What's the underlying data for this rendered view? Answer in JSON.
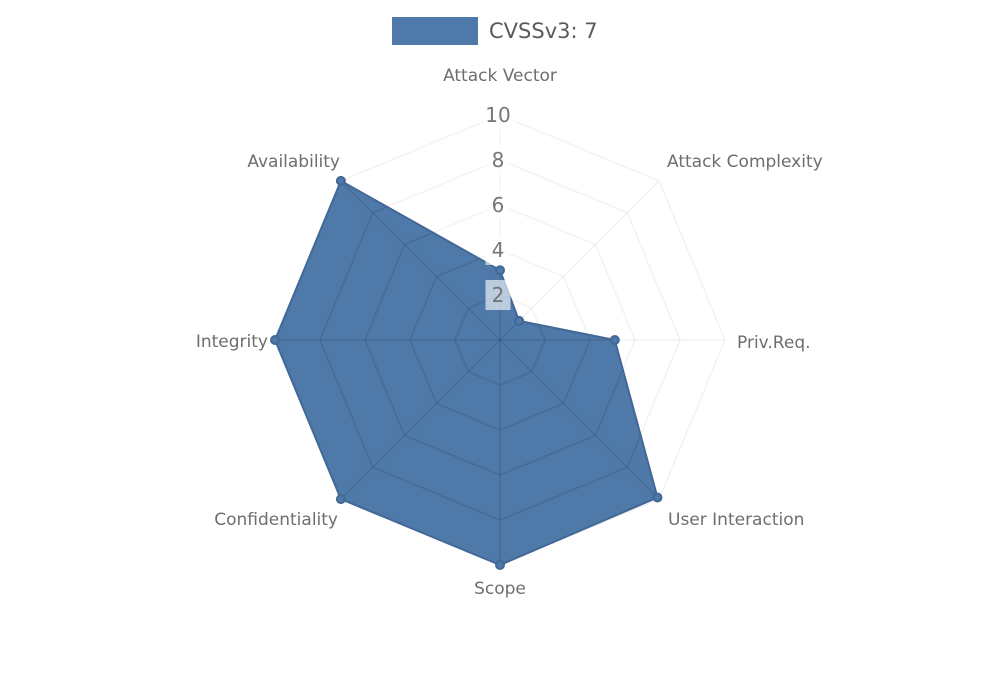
{
  "legend": {
    "label": "CVSSv3: 7"
  },
  "chart_data": {
    "type": "radar",
    "title": "",
    "categories": [
      "Attack Vector",
      "Attack Complexity",
      "Priv.Req.",
      "User Interaction",
      "Scope",
      "Confidentiality",
      "Integrity",
      "Availability"
    ],
    "series": [
      {
        "name": "CVSSv3: 7",
        "color": "#4e79a8",
        "values": [
          3.1,
          1.2,
          5.1,
          9.9,
          10,
          10,
          10,
          10
        ]
      }
    ],
    "radial_ticks": [
      2,
      4,
      6,
      8,
      10
    ],
    "rlim": [
      0,
      10
    ],
    "grid": "polygonal, 5 rings, 8 spokes, visible mainly inside filled area",
    "legend_position": "top-center",
    "markers": "filled dot at each vertex",
    "colors": {
      "series_fill": "#4e79a8",
      "series_outline": "#426896",
      "grid_inner": "rgba(0,0,0,0.10)",
      "grid_outer": "rgba(0,0,0,0.05)",
      "axis_label": "#6e6e6e",
      "tick_label": "#6f6f6f",
      "tick_box": "rgba(255,255,255,0.62)",
      "legend_text": "#5a5a5a"
    }
  }
}
